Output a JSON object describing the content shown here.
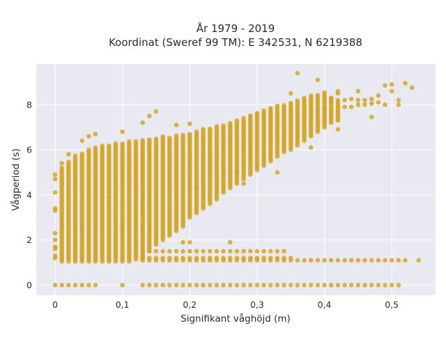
{
  "chart_data": {
    "type": "scatter",
    "title": "År 1979 - 2019",
    "subtitle": "Koordinat (Sweref 99 TM): E 342531, N 6219388",
    "xlabel": "Signifikant våghöjd (m)",
    "ylabel": "Vågperiod (s)",
    "xlim": [
      -0.028,
      0.565
    ],
    "ylim": [
      -0.45,
      9.8
    ],
    "xticks": [
      0,
      0.1,
      0.2,
      0.3,
      0.4,
      0.5
    ],
    "xtick_labels": [
      "0",
      "0,1",
      "0,2",
      "0,3",
      "0,4",
      "0,5"
    ],
    "yticks": [
      0,
      2,
      4,
      6,
      8
    ],
    "ytick_labels": [
      "0",
      "2",
      "4",
      "6",
      "8"
    ],
    "grid": true,
    "background_color": "#e9e9f1",
    "marker_color": "#d4a520",
    "band": {
      "x": [
        0.01,
        0.02,
        0.03,
        0.04,
        0.05,
        0.06,
        0.07,
        0.08,
        0.09,
        0.1,
        0.11,
        0.12,
        0.13,
        0.14,
        0.15,
        0.16,
        0.17,
        0.18,
        0.19,
        0.2,
        0.21,
        0.22,
        0.23,
        0.24,
        0.25,
        0.26,
        0.27,
        0.28,
        0.29,
        0.3,
        0.31,
        0.32,
        0.33,
        0.34,
        0.35,
        0.36,
        0.37,
        0.38,
        0.39,
        0.4,
        0.41,
        0.42
      ],
      "low": [
        1.05,
        1.05,
        1.05,
        1.05,
        1.05,
        1.05,
        1.05,
        1.05,
        1.05,
        1.05,
        1.05,
        1.15,
        1.2,
        1.5,
        1.8,
        2.0,
        2.2,
        2.4,
        2.6,
        3.0,
        3.2,
        3.4,
        3.6,
        3.8,
        4.1,
        4.3,
        4.5,
        4.7,
        4.9,
        5.1,
        5.3,
        5.5,
        5.7,
        5.9,
        6.0,
        6.2,
        6.4,
        6.6,
        6.8,
        7.0,
        7.2,
        7.3
      ],
      "high": [
        5.2,
        5.5,
        5.75,
        5.9,
        6.0,
        6.1,
        6.2,
        6.25,
        6.3,
        6.35,
        6.4,
        6.45,
        6.5,
        6.5,
        6.55,
        6.6,
        6.6,
        6.65,
        6.7,
        6.75,
        6.85,
        6.95,
        7.0,
        7.05,
        7.15,
        7.25,
        7.35,
        7.45,
        7.55,
        7.7,
        7.8,
        7.85,
        7.95,
        8.0,
        8.1,
        8.2,
        8.3,
        8.4,
        8.5,
        8.6,
        8.3,
        8.2
      ]
    },
    "upper_cluster": [
      [
        0.43,
        7.9
      ],
      [
        0.43,
        8.2
      ],
      [
        0.44,
        7.9
      ],
      [
        0.44,
        8.25
      ],
      [
        0.45,
        8.0
      ],
      [
        0.45,
        8.2
      ],
      [
        0.46,
        8.0
      ],
      [
        0.46,
        8.2
      ],
      [
        0.47,
        8.05
      ],
      [
        0.47,
        8.25
      ],
      [
        0.48,
        8.1
      ],
      [
        0.48,
        8.4
      ],
      [
        0.49,
        8.85
      ],
      [
        0.5,
        8.6
      ],
      [
        0.5,
        8.9
      ],
      [
        0.52,
        8.95
      ],
      [
        0.53,
        8.75
      ],
      [
        0.49,
        8.0
      ],
      [
        0.51,
        8.0
      ],
      [
        0.51,
        8.2
      ],
      [
        0.47,
        7.45
      ],
      [
        0.42,
        6.9
      ],
      [
        0.45,
        8.6
      ],
      [
        0.42,
        8.5
      ],
      [
        0.39,
        9.1
      ]
    ],
    "low_rows": [
      {
        "y": 1.1,
        "x_from": 0.13,
        "x_to": 0.52
      },
      {
        "y": 1.2,
        "x_from": 0.13,
        "x_to": 0.35
      },
      {
        "y": 1.5,
        "x_from": 0.13,
        "x_to": 0.34
      }
    ],
    "zero_row": {
      "y": 0,
      "x_from": 0.13,
      "x_to": 0.51
    },
    "zero_row_left": [
      0.0,
      0.01,
      0.02,
      0.03,
      0.04,
      0.05,
      0.06,
      0.1
    ],
    "outliers": [
      [
        0.36,
        9.4
      ],
      [
        0.15,
        7.7
      ],
      [
        0.14,
        7.5
      ],
      [
        0.13,
        7.2
      ],
      [
        0.18,
        7.1
      ],
      [
        0.2,
        7.15
      ],
      [
        0.1,
        6.8
      ],
      [
        0.05,
        6.6
      ],
      [
        0.06,
        6.7
      ],
      [
        0.04,
        6.4
      ],
      [
        0.33,
        5.0
      ],
      [
        0.27,
        5.0
      ],
      [
        0.28,
        4.5
      ],
      [
        0.21,
        4.3
      ],
      [
        0.19,
        1.9
      ],
      [
        0.2,
        1.9
      ],
      [
        0.26,
        1.9
      ],
      [
        0.54,
        1.1
      ],
      [
        0.0,
        4.9
      ],
      [
        0.0,
        4.7
      ],
      [
        0.0,
        4.1
      ],
      [
        0.0,
        3.4
      ],
      [
        0.0,
        3.3
      ],
      [
        0.0,
        2.3
      ],
      [
        0.0,
        2.0
      ],
      [
        0.0,
        1.7
      ],
      [
        0.0,
        1.6
      ],
      [
        0.0,
        1.3
      ],
      [
        0.0,
        1.2
      ],
      [
        0.01,
        5.4
      ],
      [
        0.02,
        5.8
      ],
      [
        0.38,
        6.1
      ],
      [
        0.35,
        8.5
      ],
      [
        0.41,
        8.3
      ],
      [
        0.42,
        8.6
      ],
      [
        0.4,
        7.3
      ]
    ]
  }
}
